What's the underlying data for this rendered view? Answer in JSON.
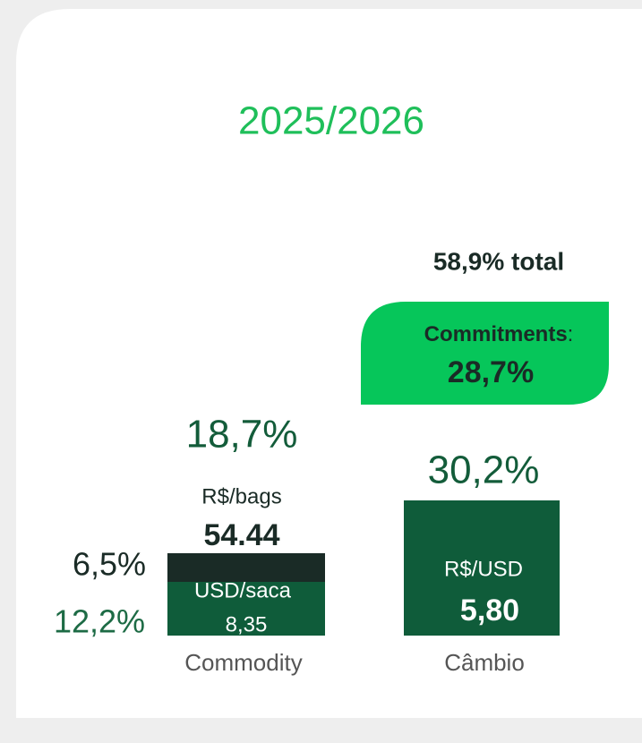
{
  "title": "2025/2026",
  "summary": {
    "total": "58,9% total",
    "label": "Commitments",
    "separator": ":",
    "value": "28,7%"
  },
  "commodity": {
    "percent": "18,7%",
    "unit": "R$/bags",
    "price": "54.44",
    "segments": [
      {
        "percent": "6,5%"
      },
      {
        "percent": "12,2%",
        "unit": "USD/saca",
        "price": "8,35"
      }
    ],
    "label": "Commodity"
  },
  "cambio": {
    "percent": "30,2%",
    "unit": "R$/USD",
    "price": "5,80",
    "label": "Câmbio"
  }
}
